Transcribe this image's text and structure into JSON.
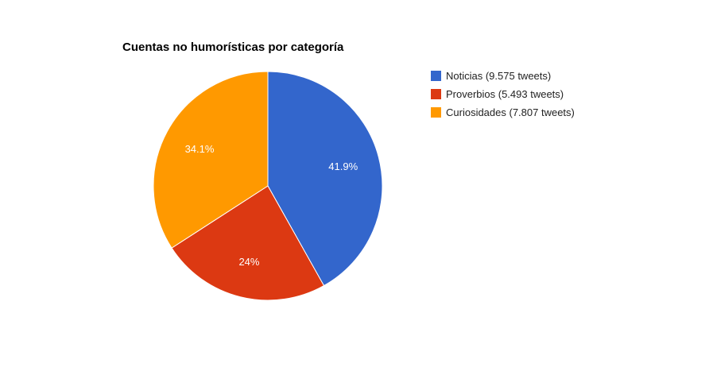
{
  "chart_data": {
    "type": "pie",
    "title": "Cuentas no humorísticas por categoría",
    "legend_position": "right",
    "slices": [
      {
        "label": "Noticias",
        "legend": "Noticias (9.575 tweets)",
        "value": 9575,
        "percent_label": "41.9%",
        "color": "#3366cc"
      },
      {
        "label": "Proverbios",
        "legend": "Proverbios (5.493 tweets)",
        "value": 5493,
        "percent_label": "24%",
        "color": "#dc3912"
      },
      {
        "label": "Curiosidades",
        "legend": "Curiosidades (7.807 tweets)",
        "value": 7807,
        "percent_label": "34.1%",
        "color": "#ff9900"
      }
    ]
  }
}
